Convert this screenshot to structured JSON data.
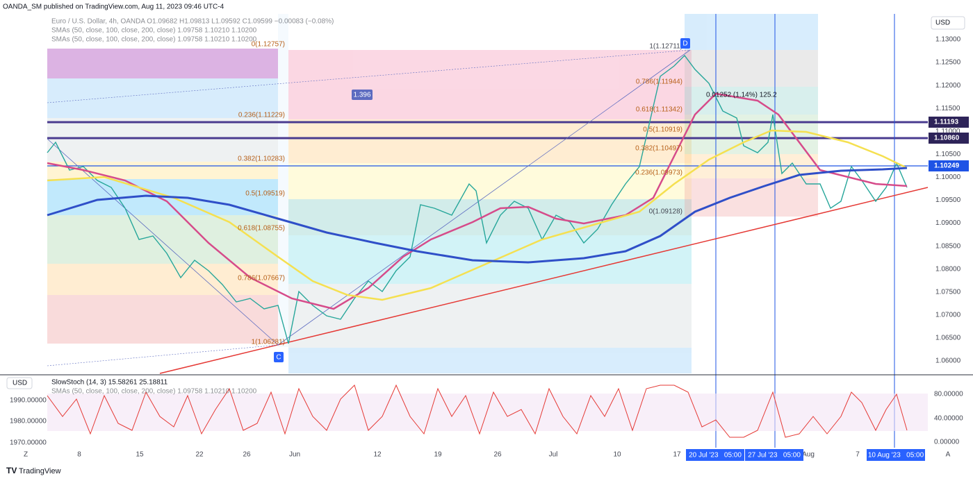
{
  "header": {
    "publisher": "OANDA_SM published on TradingView.com, Aug 11, 2023 09:46 UTC-4"
  },
  "legend": {
    "symbol": "Euro / U.S. Dollar, 4h, OANDA O1.09682 H1.09813 L1.09592 C1.09599 −0.00083 (−0.08%)",
    "sma1": "SMAs (50, close, 100, close, 200, close)  1.09758  1.10210  1.10200",
    "sma2": "SMAs (50, close, 100, close, 200, close)  1.09758  1.10210  1.10200"
  },
  "price_axis": {
    "currency": "USD",
    "labels": [
      "1.13000",
      "1.12500",
      "1.12000",
      "1.11500",
      "1.11000",
      "1.10500",
      "1.10000",
      "1.09500",
      "1.09000",
      "1.08500",
      "1.08000",
      "1.07500",
      "1.07000",
      "1.06500",
      "1.06000"
    ],
    "badges": [
      "1.11193",
      "1.10860",
      "1.10249"
    ]
  },
  "fib_left": [
    "0(1.12757)",
    "0.236(1.11229)",
    "0.382(1.10283)",
    "0.5(1.09519)",
    "0.618(1.08755)",
    "0.786(1.07667)",
    "1(1.06281)"
  ],
  "fib_right": [
    "1(1.12711)",
    "0.786(1.11944)",
    "0.618(1.11342)",
    "0.5(1.10919)",
    "0.382(1.10497)",
    "0.236(1.09973)",
    "0(1.09128)"
  ],
  "annotations": {
    "ratio": "1.396",
    "measure": "0.01252 (1.14%) 125.2",
    "point_d": "D",
    "point_c": "C"
  },
  "indicator": {
    "currency": "USD",
    "name": "SlowStoch (14, 3)  15.58261  25.18811",
    "sma": "SMAs (50, close, 100, close, 200, close)  1.09758  1.10210  1.10200",
    "left_labels": [
      "1990.00000",
      "1980.00000",
      "1970.00000"
    ],
    "right_labels": [
      "80.00000",
      "40.00000",
      "0.00000"
    ]
  },
  "time_axis": {
    "labels": [
      "Z",
      "8",
      "15",
      "22",
      "26",
      "Jun",
      "12",
      "19",
      "26",
      "Jul",
      "10",
      "17",
      "Aug",
      "7",
      "A"
    ],
    "highlights": [
      "20 Jul '23   05:00",
      "27 Jul '23   05:00",
      "10 Aug '23   05:00"
    ]
  },
  "footer": {
    "brand": "TradingView"
  }
}
